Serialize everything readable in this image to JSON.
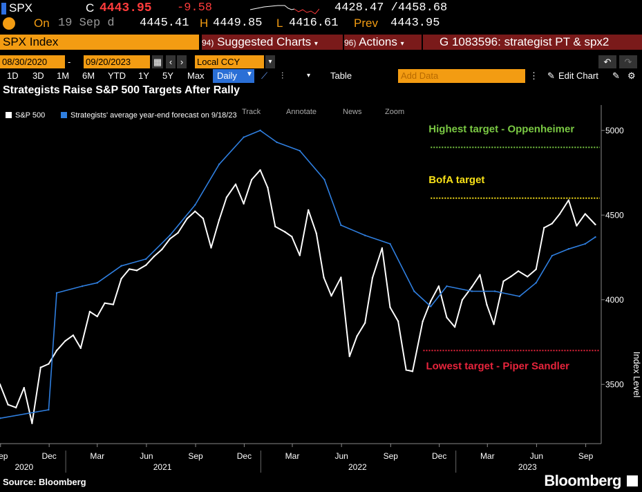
{
  "header": {
    "symbol": "SPX",
    "change_label": "C",
    "last_price": "4443.95",
    "net_change": "-9.58",
    "range_text": "4428.47 /4458.68",
    "on_label": "On",
    "date": "19 Sep d",
    "open_value": "4445.41",
    "high_label": "H",
    "high_value": "4449.85",
    "low_label": "L",
    "low_value": "4416.61",
    "prev_label": "Prev",
    "prev_value": "4443.95"
  },
  "toolbar": {
    "index_label": "SPX Index",
    "suggested_code": "94)",
    "suggested_label": "Suggested Charts",
    "actions_code": "96)",
    "actions_label": "Actions",
    "news_label": "G 1083596: strategist PT & spx2",
    "start_date": "08/30/2020",
    "end_date": "09/20/2023",
    "currency": "Local CCY",
    "periods": [
      "1D",
      "3D",
      "1M",
      "6M",
      "YTD",
      "1Y",
      "5Y",
      "Max"
    ],
    "frequency": "Daily",
    "table_label": "Table",
    "add_data_placeholder": "Add Data",
    "edit_chart_label": "Edit Chart"
  },
  "chart_toolbar": {
    "track": "Track",
    "annotate": "Annotate",
    "news": "News",
    "zoom": "Zoom"
  },
  "colors": {
    "orange": "#f39c12",
    "up_red": "#ff3b3b",
    "price_line": "#ffffff",
    "forecast_line": "#2f7fe0",
    "highest": "#7ac943",
    "bofa": "#f7e017",
    "lowest": "#e8243c"
  },
  "chart_data": {
    "type": "line",
    "title": "Strategists Raise S&P 500 Targets After Rally",
    "ylabel": "Index Level",
    "ylim": [
      3150,
      5150
    ],
    "yticks": [
      3500,
      4000,
      4500,
      5000
    ],
    "x_tick_labels": [
      "Sep",
      "Dec",
      "Mar",
      "Jun",
      "Sep",
      "Dec",
      "Mar",
      "Jun",
      "Sep",
      "Dec",
      "Mar",
      "Jun",
      "Sep"
    ],
    "x_year_labels": [
      "2020",
      "2021",
      "2022",
      "2023"
    ],
    "legend_position": "top-left",
    "source": "Source: Bloomberg",
    "brand": "Bloomberg",
    "series": [
      {
        "name": "S&P 500",
        "x": [
          "2020-08-31",
          "2020-09-15",
          "2020-09-30",
          "2020-10-15",
          "2020-10-30",
          "2020-11-15",
          "2020-11-30",
          "2020-12-15",
          "2020-12-31",
          "2021-01-15",
          "2021-01-29",
          "2021-02-15",
          "2021-03-01",
          "2021-03-15",
          "2021-03-31",
          "2021-04-15",
          "2021-04-30",
          "2021-05-14",
          "2021-05-31",
          "2021-06-15",
          "2021-06-30",
          "2021-07-15",
          "2021-07-30",
          "2021-08-16",
          "2021-08-31",
          "2021-09-15",
          "2021-09-30",
          "2021-10-15",
          "2021-10-29",
          "2021-11-15",
          "2021-11-30",
          "2021-12-15",
          "2021-12-31",
          "2022-01-14",
          "2022-01-28",
          "2022-02-15",
          "2022-02-28",
          "2022-03-15",
          "2022-03-31",
          "2022-04-15",
          "2022-04-29",
          "2022-05-13",
          "2022-05-31",
          "2022-06-16",
          "2022-06-30",
          "2022-07-15",
          "2022-07-29",
          "2022-08-16",
          "2022-08-31",
          "2022-09-15",
          "2022-09-30",
          "2022-10-12",
          "2022-10-31",
          "2022-11-15",
          "2022-11-30",
          "2022-12-15",
          "2022-12-30",
          "2023-01-13",
          "2023-01-31",
          "2023-02-15",
          "2023-02-28",
          "2023-03-13",
          "2023-03-31",
          "2023-04-14",
          "2023-04-28",
          "2023-05-15",
          "2023-05-31",
          "2023-06-15",
          "2023-06-30",
          "2023-07-14",
          "2023-07-31",
          "2023-08-15",
          "2023-08-31",
          "2023-09-19"
        ],
        "values": [
          3500,
          3380,
          3363,
          3480,
          3270,
          3600,
          3621,
          3700,
          3756,
          3790,
          3714,
          3930,
          3901,
          3980,
          3972,
          4124,
          4181,
          4173,
          4204,
          4255,
          4297,
          4360,
          4395,
          4479,
          4522,
          4480,
          4307,
          4471,
          4605,
          4682,
          4567,
          4709,
          4766,
          4662,
          4432,
          4401,
          4373,
          4262,
          4530,
          4392,
          4131,
          4023,
          4132,
          3666,
          3785,
          3863,
          4130,
          4305,
          3955,
          3873,
          3585,
          3577,
          3872,
          3992,
          4080,
          3895,
          3839,
          3999,
          4076,
          4147,
          3970,
          3855,
          4109,
          4137,
          4169,
          4136,
          4180,
          4425,
          4450,
          4505,
          4588,
          4437,
          4507,
          4444
        ]
      },
      {
        "name": "Strategists' average year-end forecast on 9/18/23",
        "x": [
          "2020-08-31",
          "2020-11-30",
          "2020-12-15",
          "2021-02-01",
          "2021-03-01",
          "2021-04-15",
          "2021-05-31",
          "2021-07-15",
          "2021-08-31",
          "2021-10-15",
          "2021-11-30",
          "2021-12-31",
          "2022-01-31",
          "2022-03-15",
          "2022-04-30",
          "2022-05-31",
          "2022-07-15",
          "2022-08-31",
          "2022-10-15",
          "2022-11-15",
          "2022-12-15",
          "2023-01-31",
          "2023-03-15",
          "2023-04-30",
          "2023-05-31",
          "2023-06-30",
          "2023-07-31",
          "2023-08-31",
          "2023-09-19"
        ],
        "values": [
          3300,
          3350,
          4040,
          4080,
          4100,
          4200,
          4240,
          4380,
          4560,
          4800,
          4960,
          5000,
          4930,
          4880,
          4710,
          4440,
          4380,
          4330,
          4050,
          3960,
          4080,
          4050,
          4050,
          4020,
          4100,
          4260,
          4300,
          4330,
          4370
        ]
      }
    ],
    "reference_lines": [
      {
        "label": "Highest target - Oppenheimer",
        "value": 4900,
        "x_start": "2022-11-15"
      },
      {
        "label": "BofA target",
        "value": 4600,
        "x_start": "2022-11-15"
      },
      {
        "label": "Lowest target - Piper Sandler",
        "value": 3700,
        "x_start": "2022-11-01"
      }
    ]
  }
}
